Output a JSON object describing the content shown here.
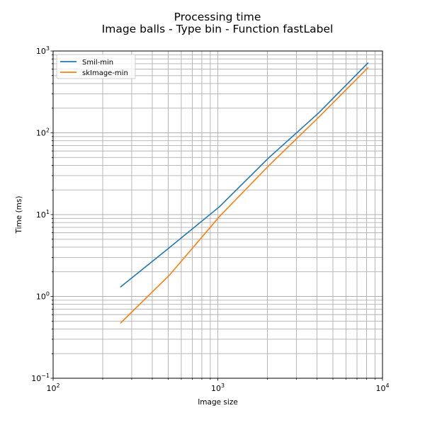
{
  "chart_data": {
    "type": "line",
    "title": "Processing time",
    "subtitle": "Image balls - Type bin - Function fastLabel",
    "xlabel": "Image size",
    "ylabel": "Time (ms)",
    "xscale": "log",
    "yscale": "log",
    "xlim": [
      100,
      10000
    ],
    "ylim": [
      0.1,
      1000
    ],
    "x_tick_labels": [
      {
        "value": 100,
        "base": "10",
        "exp": "2"
      },
      {
        "value": 1000,
        "base": "10",
        "exp": "3"
      },
      {
        "value": 10000,
        "base": "10",
        "exp": "4"
      }
    ],
    "y_tick_labels": [
      {
        "value": 0.1,
        "base": "10",
        "exp": "−1"
      },
      {
        "value": 1,
        "base": "10",
        "exp": "0"
      },
      {
        "value": 10,
        "base": "10",
        "exp": "1"
      },
      {
        "value": 100,
        "base": "10",
        "exp": "2"
      },
      {
        "value": 1000,
        "base": "10",
        "exp": "3"
      }
    ],
    "grid": true,
    "legend_position": "top-left",
    "series": [
      {
        "name": "Smil-min",
        "color": "#1f77b4",
        "x": [
          256,
          512,
          1024,
          2048,
          4096,
          8192
        ],
        "y": [
          1.3,
          4.0,
          12.5,
          50,
          175,
          720
        ]
      },
      {
        "name": "skImage-min",
        "color": "#ff7f0e",
        "x": [
          256,
          512,
          1024,
          2048,
          4096,
          8192
        ],
        "y": [
          0.47,
          1.85,
          9.5,
          40,
          155,
          630
        ]
      }
    ]
  }
}
